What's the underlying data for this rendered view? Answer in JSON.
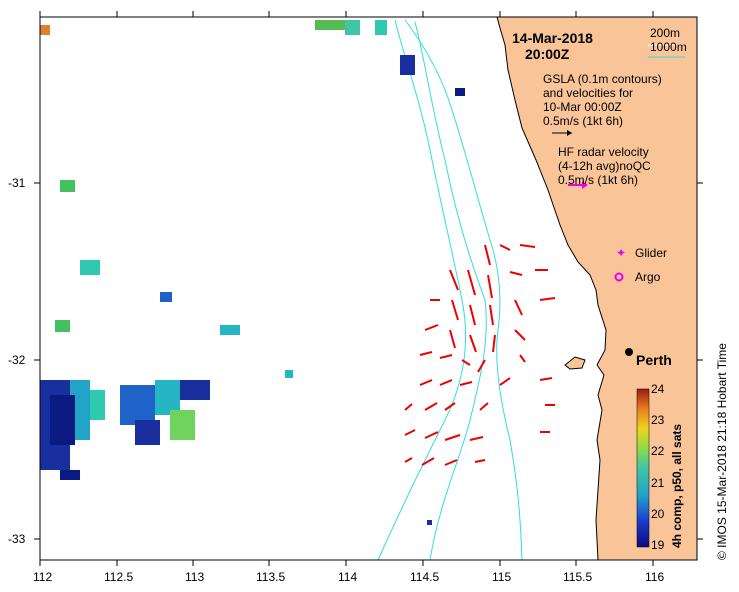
{
  "map": {
    "date": "14-Mar-2018",
    "time": "20:00Z",
    "contours_legend": [
      "200m",
      "1000m"
    ],
    "gsla_text": [
      "GSLA (0.1m contours)",
      "and velocities for",
      "10-Mar 00:00Z"
    ],
    "gsla_scale": "0.5m/s (1kt 6h)",
    "hf_text": [
      "HF radar velocity",
      "(4-12h avg)noQC"
    ],
    "hf_scale": "0.5m/s (1kt 6h)",
    "glider_label": "Glider",
    "argo_label": "Argo",
    "city_label": "Perth",
    "colorbar_label": "4h comp, p50, all sats",
    "colorbar_ticks": [
      "24",
      "23",
      "22",
      "21",
      "20",
      "19"
    ],
    "credit": "© IMOS 15-Mar-2018 21:18 Hobart Time",
    "x_ticks": [
      "112",
      "112.5",
      "113",
      "113.5",
      "114",
      "114.5",
      "115",
      "115.5",
      "116"
    ],
    "y_ticks": [
      "-31",
      "-32",
      "-33"
    ],
    "colors": {
      "land": "#f9c498",
      "contour": "#33dddd",
      "hf_arrow": "#ee0000",
      "hf_scale_arrow": "#ee00ee",
      "glider": "#ee00ee"
    }
  }
}
